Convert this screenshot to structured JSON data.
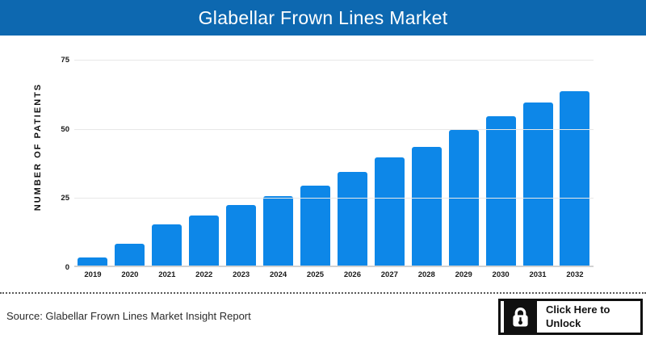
{
  "header": {
    "title": "Glabellar Frown Lines Market",
    "bg_color": "#0d68b0",
    "text_color": "#ffffff"
  },
  "chart_data": {
    "type": "bar",
    "title": "Glabellar Frown Lines Market",
    "xlabel": "",
    "ylabel": "NUMBER OF PATIENTS",
    "categories": [
      "2019",
      "2020",
      "2021",
      "2022",
      "2023",
      "2024",
      "2025",
      "2026",
      "2027",
      "2028",
      "2029",
      "2030",
      "2031",
      "2032"
    ],
    "values": [
      3,
      8,
      15,
      18,
      22,
      25,
      29,
      34,
      39,
      43,
      49,
      54,
      59,
      63
    ],
    "ylim": [
      0,
      75
    ],
    "yticks": [
      0,
      25,
      50,
      75
    ],
    "bar_color": "#0d87e8",
    "grid": "horizontal",
    "legend": "none"
  },
  "footer": {
    "source_text": "Source: Glabellar Frown Lines Market Insight Report",
    "unlock_button": {
      "icon": "lock-icon",
      "line1": "Click Here to",
      "line2": "Unlock"
    }
  }
}
